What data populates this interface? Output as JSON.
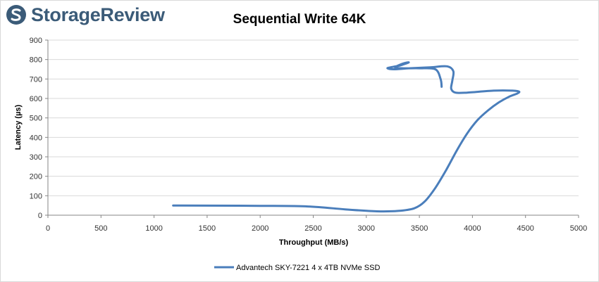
{
  "brand": {
    "name": "StorageReview",
    "logo_icon": "storagereview-logo-icon",
    "color": "#3b5b78"
  },
  "chart_data": {
    "type": "line",
    "title": "Sequential Write 64K",
    "xlabel": "Throughput (MB/s)",
    "ylabel": "Latency (µs)",
    "xlim": [
      0,
      5000
    ],
    "ylim": [
      0,
      900
    ],
    "xticks": [
      0,
      500,
      1000,
      1500,
      2000,
      2500,
      3000,
      3500,
      4000,
      4500,
      5000
    ],
    "yticks": [
      0,
      100,
      200,
      300,
      400,
      500,
      600,
      700,
      800,
      900
    ],
    "grid": "horizontal",
    "legend_position": "bottom",
    "series": [
      {
        "name": "Advantech SKY-7221 4 x 4TB NVMe SSD",
        "color": "#4a7ebb",
        "x": [
          1180,
          1500,
          2000,
          2450,
          2800,
          3100,
          3300,
          3450,
          3550,
          3650,
          3750,
          3850,
          3950,
          4050,
          4150,
          4250,
          4350,
          4420,
          4440,
          4380,
          4200,
          3950,
          3840,
          3800,
          3810,
          3820,
          3760,
          3600,
          3400,
          3260,
          3200,
          3230,
          3320,
          3400,
          3350,
          3270,
          3350,
          3500,
          3650,
          3700,
          3710
        ],
        "y": [
          50,
          49,
          48,
          45,
          30,
          20,
          22,
          35,
          70,
          140,
          230,
          330,
          420,
          490,
          540,
          580,
          610,
          625,
          635,
          640,
          640,
          630,
          630,
          650,
          690,
          740,
          765,
          760,
          755,
          750,
          755,
          760,
          770,
          785,
          780,
          760,
          755,
          755,
          750,
          700,
          660
        ]
      }
    ]
  }
}
